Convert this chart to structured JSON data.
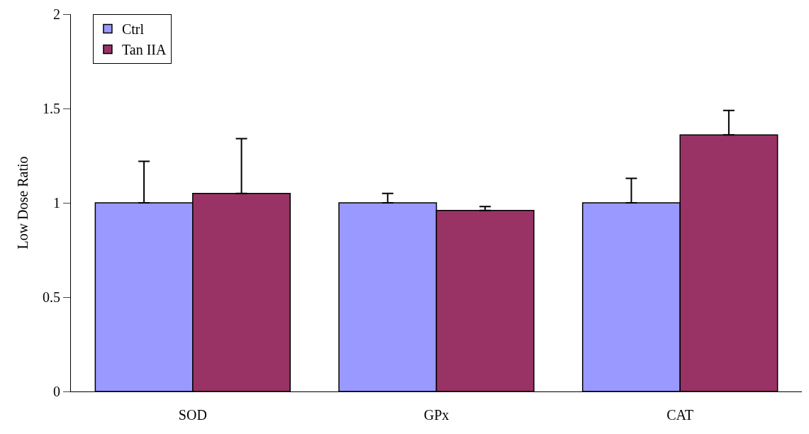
{
  "chart_data": {
    "type": "bar",
    "ylabel": "Low Dose Ratio",
    "categories": [
      "SOD",
      "GPx",
      "CAT"
    ],
    "series": [
      {
        "name": "Ctrl",
        "color": "#9999ff",
        "values": [
          1.0,
          1.0,
          1.0
        ],
        "errors": [
          [
            1.0,
            1.22
          ],
          [
            1.0,
            1.05
          ],
          [
            1.0,
            1.13
          ]
        ]
      },
      {
        "name": "Tan IIA",
        "color": "#993366",
        "values": [
          1.05,
          0.96,
          1.36
        ],
        "errors": [
          [
            1.05,
            1.34
          ],
          [
            0.96,
            0.98
          ],
          [
            1.36,
            1.49
          ]
        ]
      }
    ],
    "ylim": [
      0,
      2
    ],
    "yticks": [
      0,
      0.5,
      1,
      1.5,
      2
    ],
    "legend": "top left"
  }
}
